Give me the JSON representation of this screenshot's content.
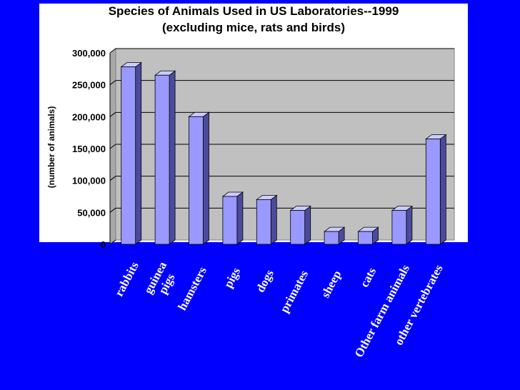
{
  "chart_data": {
    "type": "bar",
    "title": "Species of Animals Used in US Laboratories--1999",
    "subtitle": "(excluding mice, rats and birds)",
    "ylabel": "(number of animals)",
    "xlabel": "",
    "ylim": [
      0,
      300000
    ],
    "yticks": [
      0,
      50000,
      100000,
      150000,
      200000,
      250000,
      300000
    ],
    "ytick_labels": [
      "0",
      "50,000",
      "100,000",
      "150,000",
      "200,000",
      "250,000",
      "300,000"
    ],
    "categories": [
      "rabbits",
      "guinea\npigs",
      "hamsters",
      "pigs",
      "dogs",
      "primates",
      "sheep",
      "cats",
      "Other farm animals",
      "other vertebrates"
    ],
    "values": [
      278000,
      265000,
      200000,
      75000,
      70000,
      53000,
      20000,
      20000,
      53000,
      165000
    ],
    "grid": true,
    "legend": "none",
    "colors": {
      "background": "#0000ff",
      "panel": "#ffffff",
      "plot_area": "#c0c0c0",
      "bar_front": "#9999ff",
      "bar_side": "#4b4b9c",
      "bar_top": "#ccccff",
      "gridline": "#000000",
      "category_text": "#ffffff"
    }
  }
}
